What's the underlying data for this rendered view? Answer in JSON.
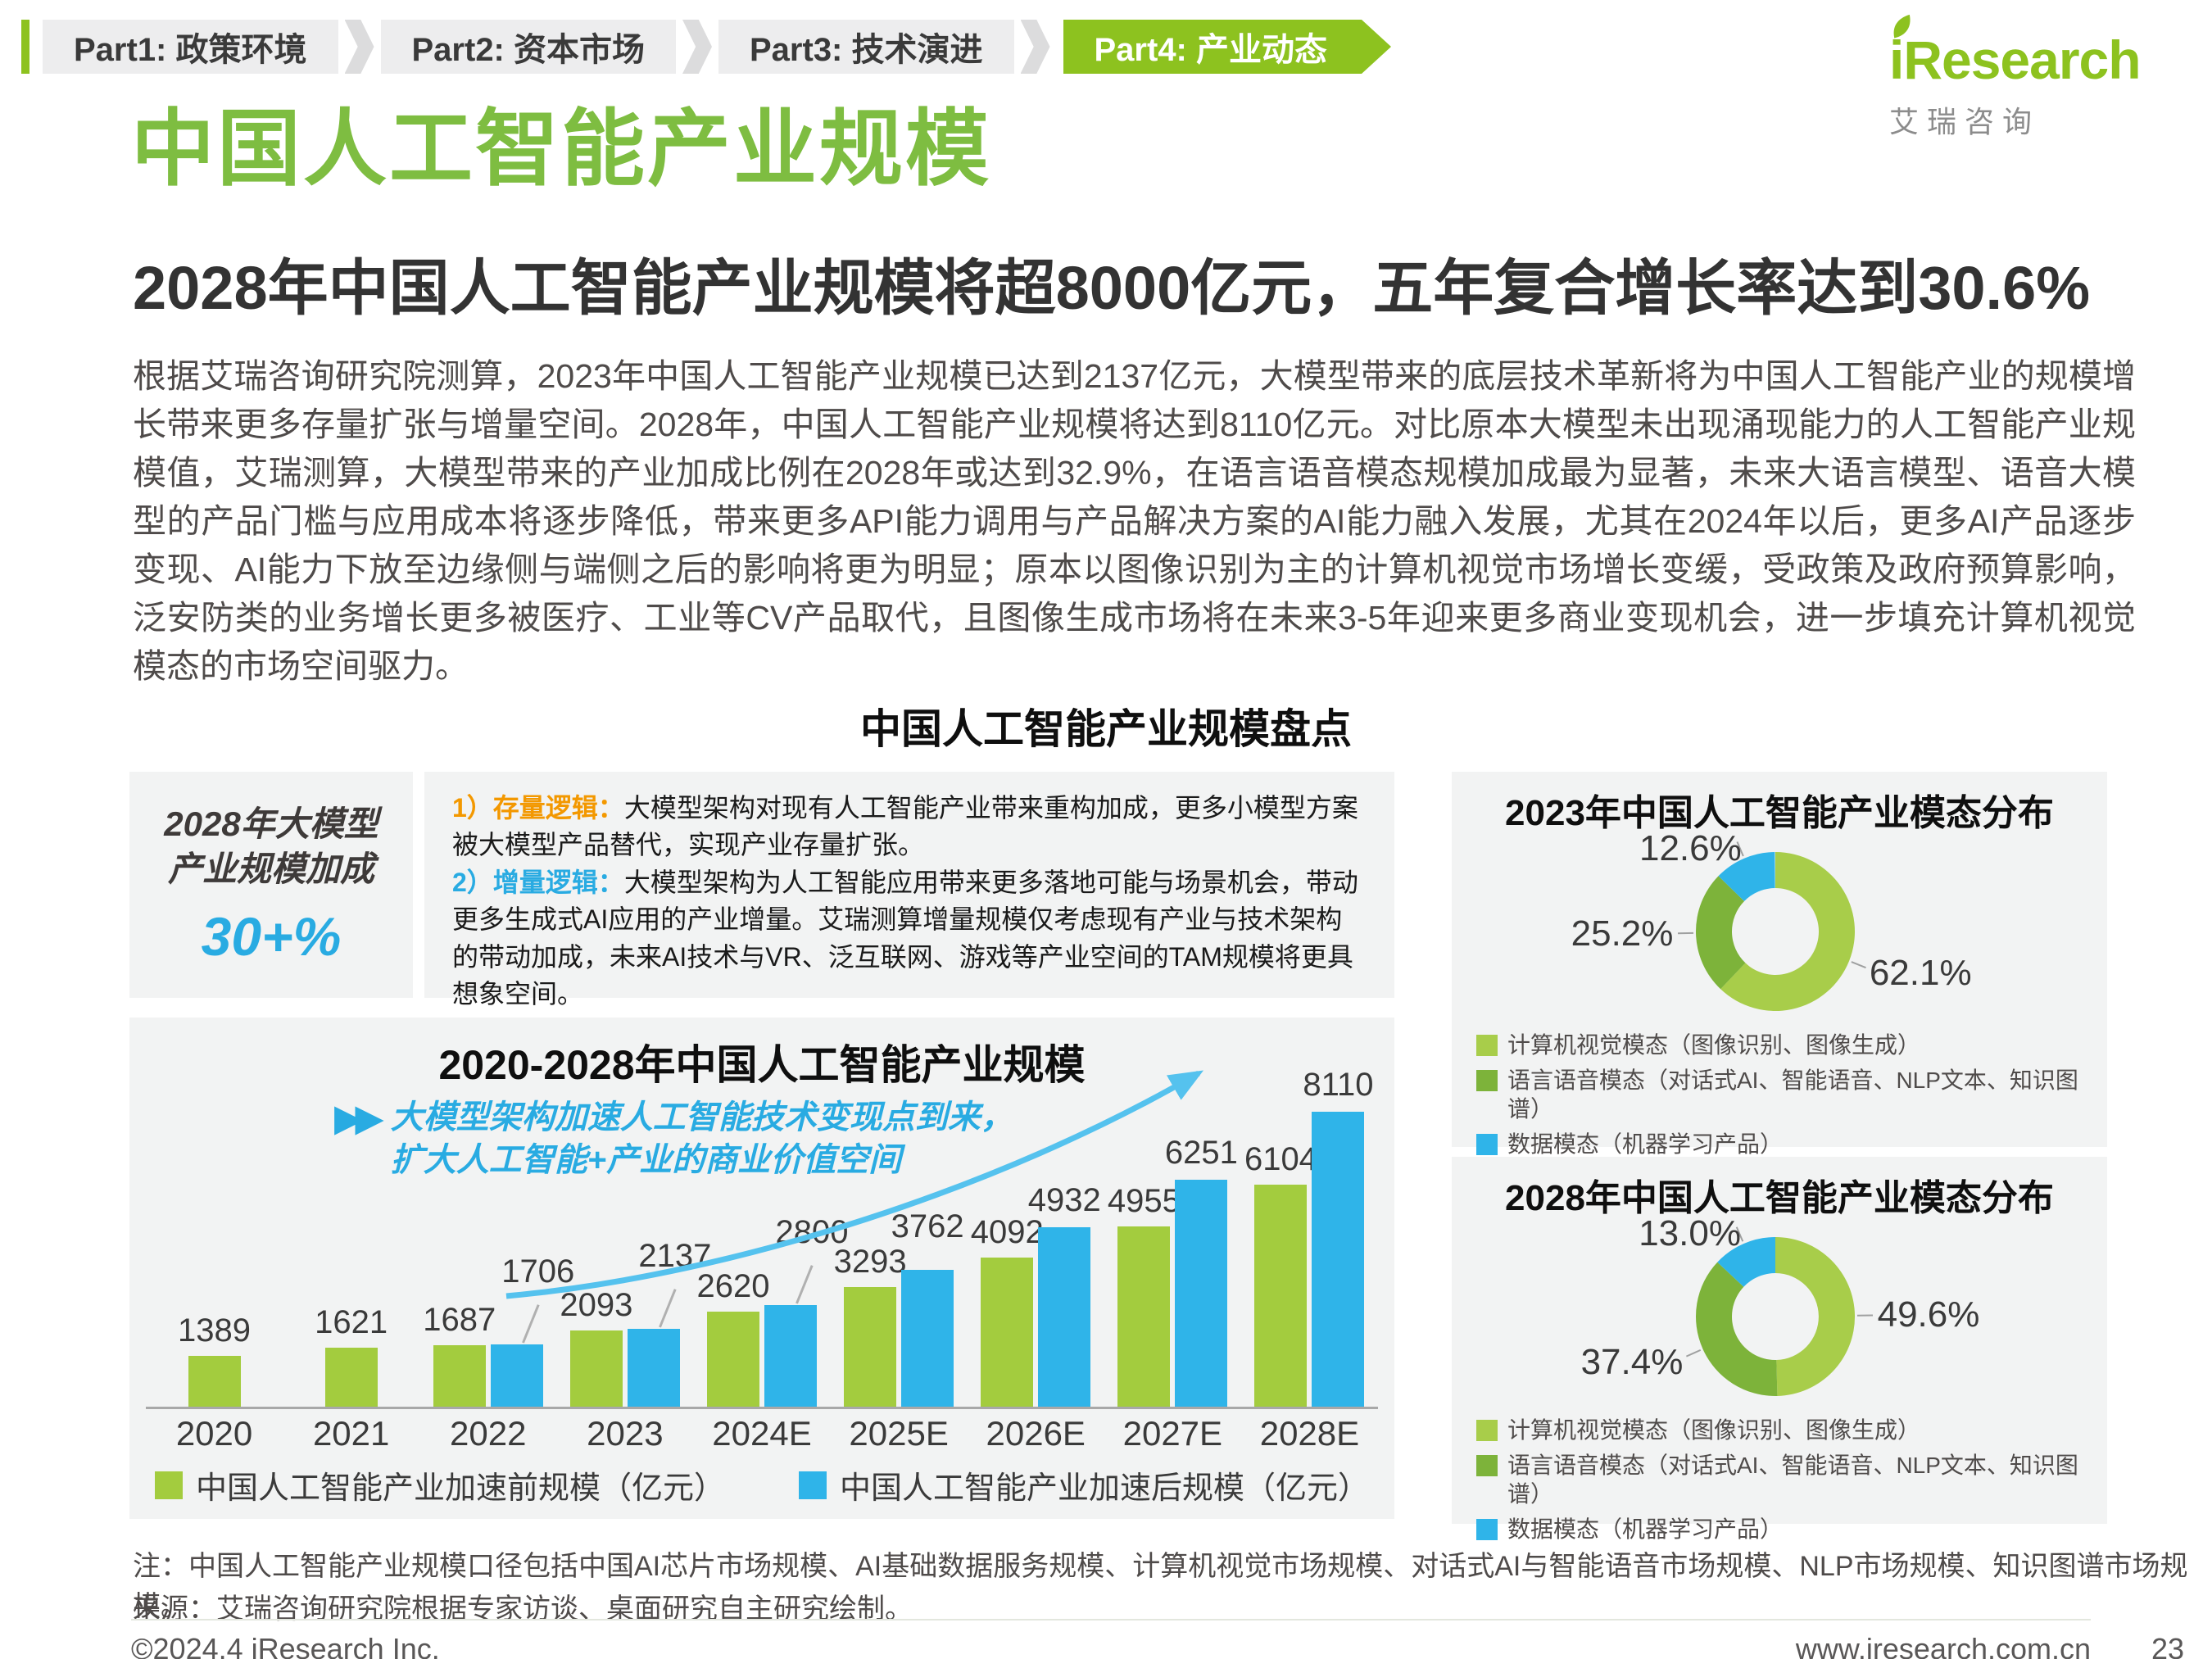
{
  "colors": {
    "green": "#8dc21f",
    "title_green": "#7ebd41",
    "cyan": "#29abe2",
    "arrow_cyan": "#55c2ee",
    "orange": "#f39800",
    "panel_bg": "#f2f3f3",
    "bar_green": "#a3cc3e",
    "bar_blue": "#2fb4e9"
  },
  "nav": {
    "tabs": [
      {
        "label": "Part1: 政策环境",
        "active": false
      },
      {
        "label": "Part2: 资本市场",
        "active": false
      },
      {
        "label": "Part3: 技术演进",
        "active": false
      },
      {
        "label": "Part4: 产业动态",
        "active": true
      }
    ]
  },
  "logo": {
    "name": "iResearch",
    "cn": "艾 瑞 咨 询"
  },
  "header": {
    "title": "中国人工智能产业规模",
    "subtitle": "2028年中国人工智能产业规模将超8000亿元，五年复合增长率达到30.6%"
  },
  "intro": "根据艾瑞咨询研究院测算，2023年中国人工智能产业规模已达到2137亿元，大模型带来的底层技术革新将为中国人工智能产业的规模增长带来更多存量扩张与增量空间。2028年，中国人工智能产业规模将达到8110亿元。对比原本大模型未出现涌现能力的人工智能产业规模值，艾瑞测算，大模型带来的产业加成比例在2028年或达到32.9%，在语言语音模态规模加成最为显著，未来大语言模型、语音大模型的产品门槛与应用成本将逐步降低，带来更多API能力调用与产品解决方案的AI能力融入发展，尤其在2024年以后，更多AI产品逐步变现、AI能力下放至边缘侧与端侧之后的影响将更为明显；原本以图像识别为主的计算机视觉市场增长变缓，受政策及政府预算影响，泛安防类的业务增长更多被医疗、工业等CV产品取代，且图像生成市场将在未来3-5年迎来更多商业变现机会，进一步填充计算机视觉模态的市场空间驱力。",
  "section_heading": "中国人工智能产业规模盘点",
  "highlight_box": {
    "title_line1": "2028年大模型",
    "title_line2": "产业规模加成",
    "value": "30+%",
    "point1_label": "1）存量逻辑：",
    "point1_text": "大模型架构对现有人工智能产业带来重构加成，更多小模型方案被大模型产品替代，实现产业存量扩张。",
    "point2_label": "2）增量逻辑：",
    "point2_text": "大模型架构为人工智能应用带来更多落地可能与场景机会，带动更多生成式AI应用的产业增量。艾瑞测算增量规模仅考虑现有产业与技术架构的带动加成，未来AI技术与VR、泛互联网、游戏等产业空间的TAM规模将更具想象空间。"
  },
  "chart_data": [
    {
      "type": "bar",
      "title": "2020-2028年中国人工智能产业规模",
      "annotation_icon": "▶▶",
      "annotation": "大模型架构加速人工智能技术变现点到来，扩大人工智能+产业的商业价值空间",
      "unit": "亿元",
      "categories": [
        "2020",
        "2021",
        "2022",
        "2023",
        "2024E",
        "2025E",
        "2026E",
        "2027E",
        "2028E"
      ],
      "series": [
        {
          "name": "中国人工智能产业加速前规模（亿元）",
          "color": "#a3cc3e",
          "values": [
            1389,
            1621,
            1687,
            2093,
            2620,
            3293,
            4092,
            4955,
            6104
          ]
        },
        {
          "name": "中国人工智能产业加速后规模（亿元）",
          "color": "#2fb4e9",
          "values": [
            null,
            null,
            1706,
            2137,
            2800,
            3762,
            4932,
            6251,
            8110
          ]
        }
      ],
      "ylim": [
        0,
        8500
      ],
      "legend_position": "bottom"
    },
    {
      "type": "donut",
      "title": "2023年中国人工智能产业模态分布",
      "labels": [
        "计算机视觉模态（图像识别、图像生成）",
        "语言语音模态（对话式AI、智能语音、NLP文本、知识图谱）",
        "数据模态（机器学习产品）"
      ],
      "values": [
        62.1,
        25.2,
        12.6
      ],
      "colors": [
        "#a8cd4a",
        "#7db33a",
        "#2fb4e9"
      ],
      "legend_position": "bottom"
    },
    {
      "type": "donut",
      "title": "2028年中国人工智能产业模态分布",
      "labels": [
        "计算机视觉模态（图像识别、图像生成）",
        "语言语音模态（对话式AI、智能语音、NLP文本、知识图谱）",
        "数据模态（机器学习产品）"
      ],
      "values": [
        49.6,
        37.4,
        13.0
      ],
      "colors": [
        "#a8cd4a",
        "#7db33a",
        "#2fb4e9"
      ],
      "legend_position": "bottom"
    }
  ],
  "notes": {
    "note": "注：中国人工智能产业规模口径包括中国AI芯片市场规模、AI基础数据服务规模、计算机视觉市场规模、对话式AI与智能语音市场规模、NLP市场规模、知识图谱市场规模。",
    "source": "来源：艾瑞咨询研究院根据专家访谈、桌面研究自主研究绘制。"
  },
  "footer": {
    "copyright": "©2024.4 iResearch Inc.",
    "website": "www.iresearch.com.cn",
    "page": "23"
  }
}
